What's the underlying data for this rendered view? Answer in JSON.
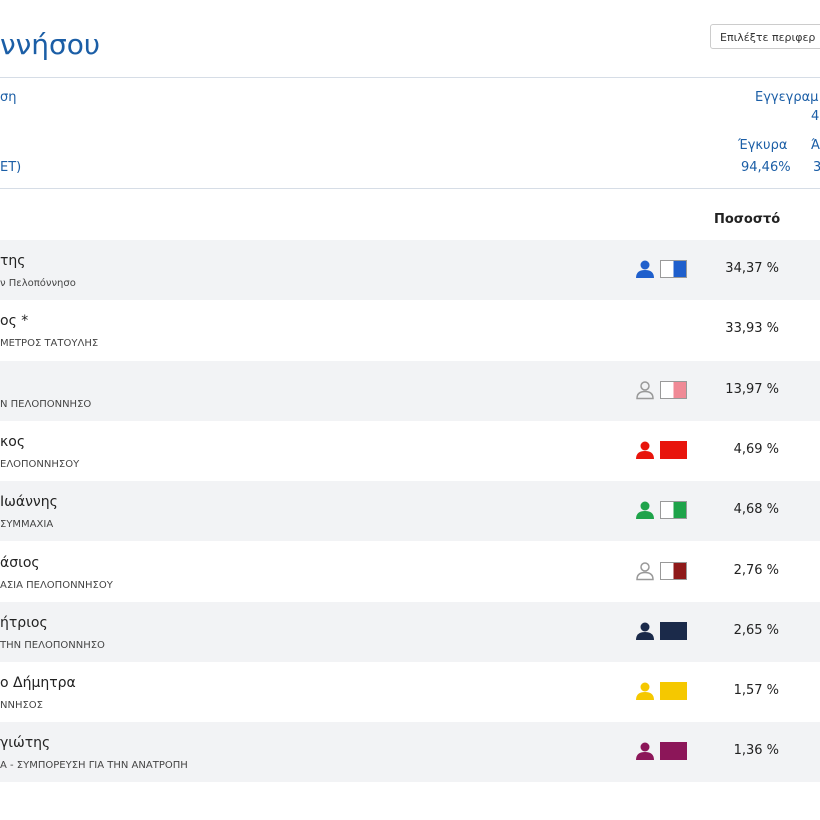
{
  "header": {
    "title": "ννήσου",
    "select": "Επιλέξτε περιφερ",
    "left_top": "ση",
    "left_bottom": "ΕΤ)",
    "registered_label": "Εγγεγραμ",
    "registered_value": "4",
    "valid_label": "Έγκυρα",
    "valid_value": "94,46%",
    "other_label": "Ά",
    "other_value": "3"
  },
  "table": {
    "column": "Ποσοστό",
    "rows": [
      {
        "name": "της",
        "party": "ν Πελοπόννησο",
        "percent": "34,37 %",
        "color": "#1f5fcc",
        "icon": "filled",
        "swatch": "half"
      },
      {
        "name": "ος *",
        "party": "ΜΕΤΡΟΣ ΤΑΤΟΥΛΗΣ",
        "percent": "33,93 %"
      },
      {
        "party": "Ν ΠΕΛΟΠΟΝΝΗΣΟ",
        "percent": "13,97 %",
        "color": "#f08a96",
        "icon": "outline",
        "swatch": "half"
      },
      {
        "name": "κος",
        "party": "ΕΛΟΠΟΝΝΗΣΟΥ",
        "percent": "4,69 %",
        "color": "#e8150c",
        "icon": "filled",
        "swatch": "full"
      },
      {
        "name": "Ιωάννης",
        "party": "ΣΥΜΜΑΧΙΑ",
        "percent": "4,68 %",
        "color": "#1fa34a",
        "icon": "filled",
        "swatch": "half"
      },
      {
        "name": "άσιος",
        "party": "ΑΣΙΑ ΠΕΛΟΠΟΝΝΗΣΟΥ",
        "percent": "2,76 %",
        "color": "#8f1a1a",
        "icon": "outline",
        "swatch": "half"
      },
      {
        "name": "ήτριος",
        "party": "ΤΗΝ ΠΕΛΟΠΟΝΝΗΣΟ",
        "percent": "2,65 %",
        "color": "#1b2a4a",
        "icon": "filled",
        "swatch": "full"
      },
      {
        "name": "ο Δήμητρα",
        "party": "ΝΝΗΣΟΣ",
        "percent": "1,57 %",
        "color": "#f5c800",
        "icon": "filled",
        "swatch": "full"
      },
      {
        "name": "γιώτης",
        "party": "Α - ΣΥΜΠΟΡΕΥΣΗ ΓΙΑ ΤΗΝ ΑΝΑΤΡΟΠΗ",
        "percent": "1,36 %",
        "color": "#8c1659",
        "icon": "filled",
        "swatch": "full"
      }
    ]
  }
}
